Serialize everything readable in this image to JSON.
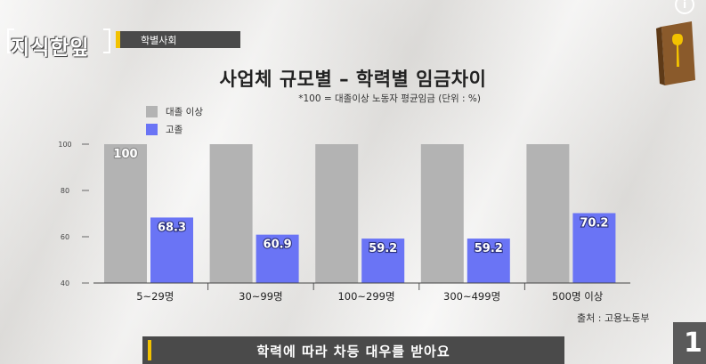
{
  "brand": {
    "logo_text": "지식한잎"
  },
  "category": {
    "label": "학별사회"
  },
  "colors": {
    "college": "#b3b3b3",
    "highschool": "#6a74f5",
    "accent": "#f2c200",
    "dark_bar": "#4a4a4a"
  },
  "chart_data": {
    "type": "bar",
    "title": "사업체 규모별 – 학력별 임금차이",
    "subtitle": "*100 = 대졸이상 노동자 평균임금 (단위 : %)",
    "categories": [
      "5~29명",
      "30~99명",
      "100~299명",
      "300~499명",
      "500명 이상"
    ],
    "series": [
      {
        "name": "대졸 이상",
        "values": [
          100,
          100,
          100,
          100,
          100
        ],
        "color": "#b3b3b3",
        "labels": [
          "100",
          "",
          "",
          "",
          ""
        ]
      },
      {
        "name": "고졸",
        "values": [
          68.3,
          60.9,
          59.2,
          59.2,
          70.2
        ],
        "color": "#6a74f5",
        "labels": [
          "68.3",
          "60.9",
          "59.2",
          "59.2",
          "70.2"
        ]
      }
    ],
    "yticks": [
      "100",
      "80",
      "60",
      "40"
    ],
    "ylim": [
      40,
      100
    ],
    "grid": false,
    "legend_position": "top-left"
  },
  "source": "출처 : 고용노동부",
  "caption": "학력에 따라 차등 대우를 받아요",
  "info_icon": "info-icon",
  "book_icon": "book-spoon-icon",
  "corner_badge": "1"
}
